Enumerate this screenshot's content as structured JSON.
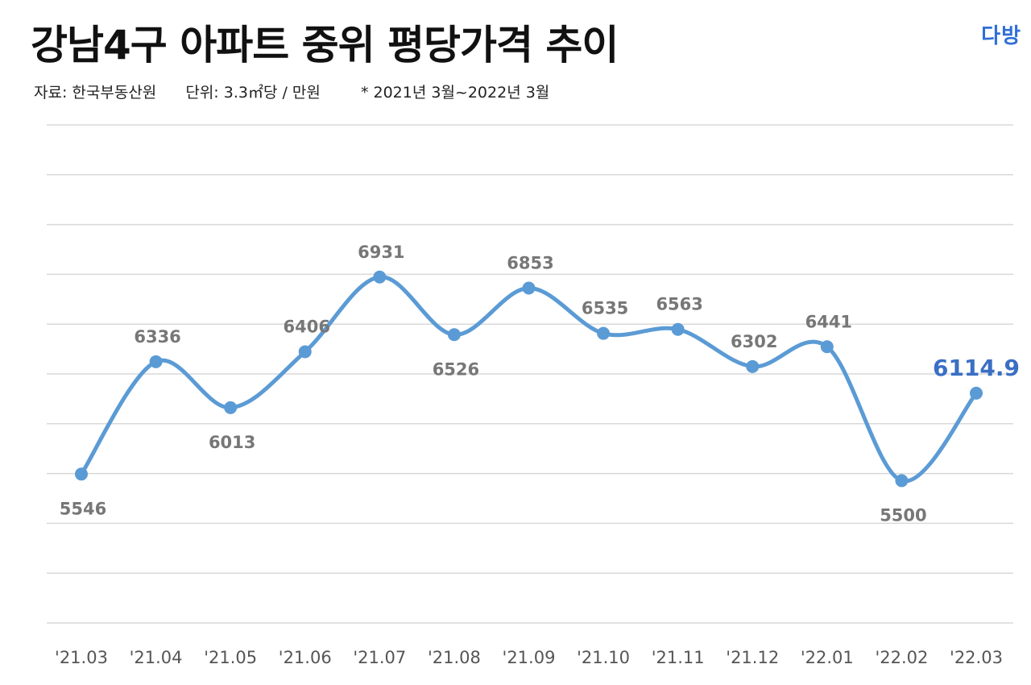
{
  "header": {
    "title": "강남4구 아파트 중위 평당가격 추이",
    "source": "자료: 한국부동산원",
    "unit": "단위: 3.3㎡당 / 만원",
    "period": "* 2021년 3월~2022년 3월",
    "logo": "다방"
  },
  "colors": {
    "line": "#5b9bd5",
    "highlight": "#3a6fc4",
    "grid": "#d9d9d9",
    "label": "#777777"
  },
  "chart_data": {
    "type": "line",
    "title": "강남4구 아파트 중위 평당가격 추이",
    "xlabel": "",
    "ylabel": "3.3㎡당 / 만원",
    "categories": [
      "'21.03",
      "'21.04",
      "'21.05",
      "'21.06",
      "'21.07",
      "'21.08",
      "'21.09",
      "'21.10",
      "'21.11",
      "'21.12",
      "'22.01",
      "'22.02",
      "'22.03"
    ],
    "series": [
      {
        "name": "중위 평당가격",
        "values": [
          5546,
          6336,
          6013,
          6406,
          6931,
          6526,
          6853,
          6535,
          6563,
          6302,
          6441,
          5500,
          6114.9
        ]
      }
    ],
    "data_labels": [
      "5546",
      "6336",
      "6013",
      "6406",
      "6931",
      "6526",
      "6853",
      "6535",
      "6563",
      "6302",
      "6441",
      "5500",
      "6114.9"
    ],
    "label_positions": [
      "below",
      "above",
      "below",
      "above",
      "above",
      "below",
      "above",
      "above",
      "above",
      "above",
      "above",
      "below",
      "above"
    ],
    "ylim": [
      4500,
      8000
    ],
    "grid": true,
    "curve": "smooth"
  }
}
